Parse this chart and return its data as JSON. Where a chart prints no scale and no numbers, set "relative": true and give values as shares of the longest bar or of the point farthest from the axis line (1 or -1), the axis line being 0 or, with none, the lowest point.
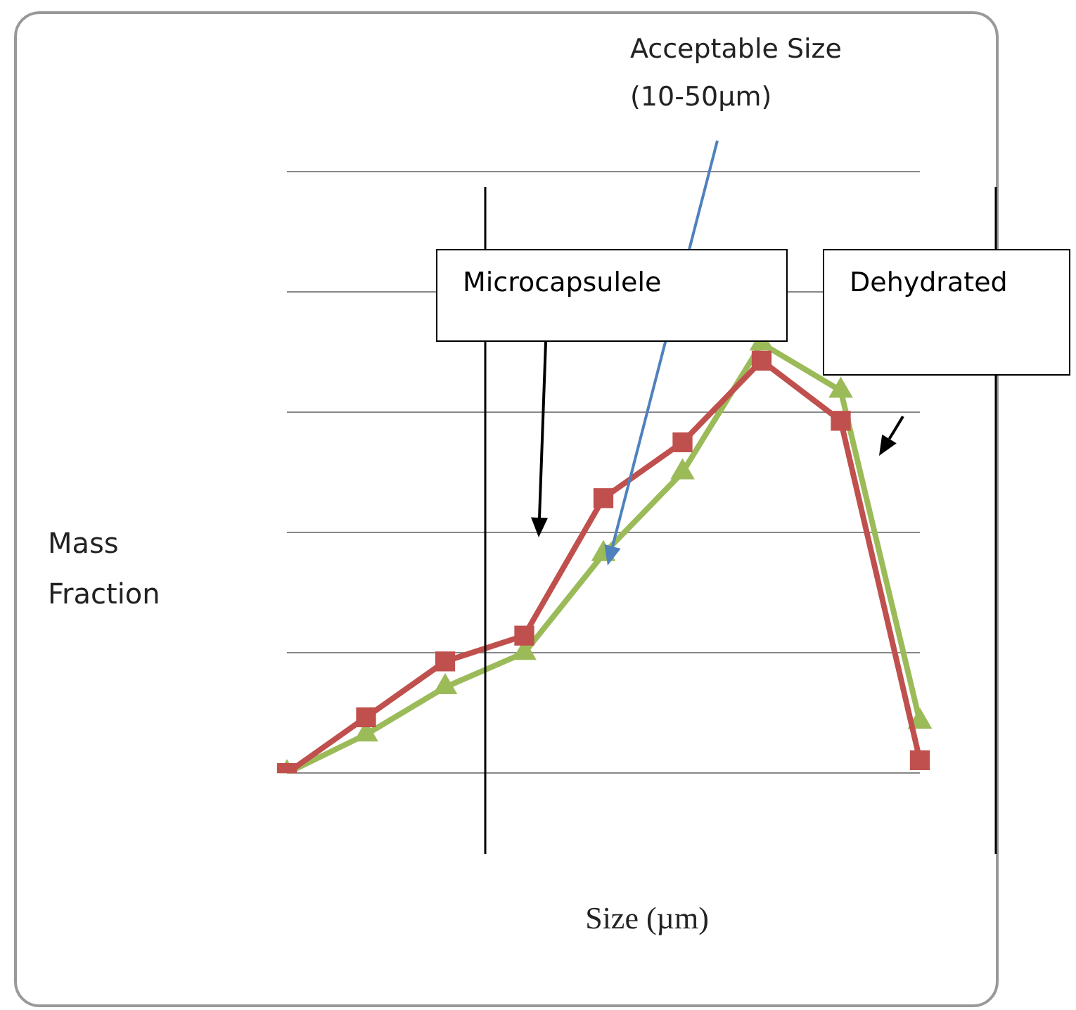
{
  "chart_data": {
    "type": "line",
    "relative": true,
    "xlabel": "Size (µm)",
    "ylabel": "Mass Fraction",
    "grid": "y",
    "legend": false,
    "line_style": "solid",
    "annotations": [
      "Acceptable Size (10-50µm)",
      "Microcapsulele",
      "Dehydrated"
    ],
    "categories": [
      null,
      null,
      null,
      null,
      null,
      null,
      null,
      null,
      null
    ],
    "series": [
      {
        "color": "#c0504d",
        "marker": "square",
        "values": [
          0,
          0.13,
          0.26,
          0.32,
          0.64,
          0.77,
          0.96,
          0.82,
          0.03
        ]
      },
      {
        "color": "#9bbb59",
        "marker": "triangle",
        "values": [
          0,
          0.09,
          0.2,
          0.28,
          0.51,
          0.7,
          1,
          0.89,
          0.12
        ]
      }
    ]
  }
}
